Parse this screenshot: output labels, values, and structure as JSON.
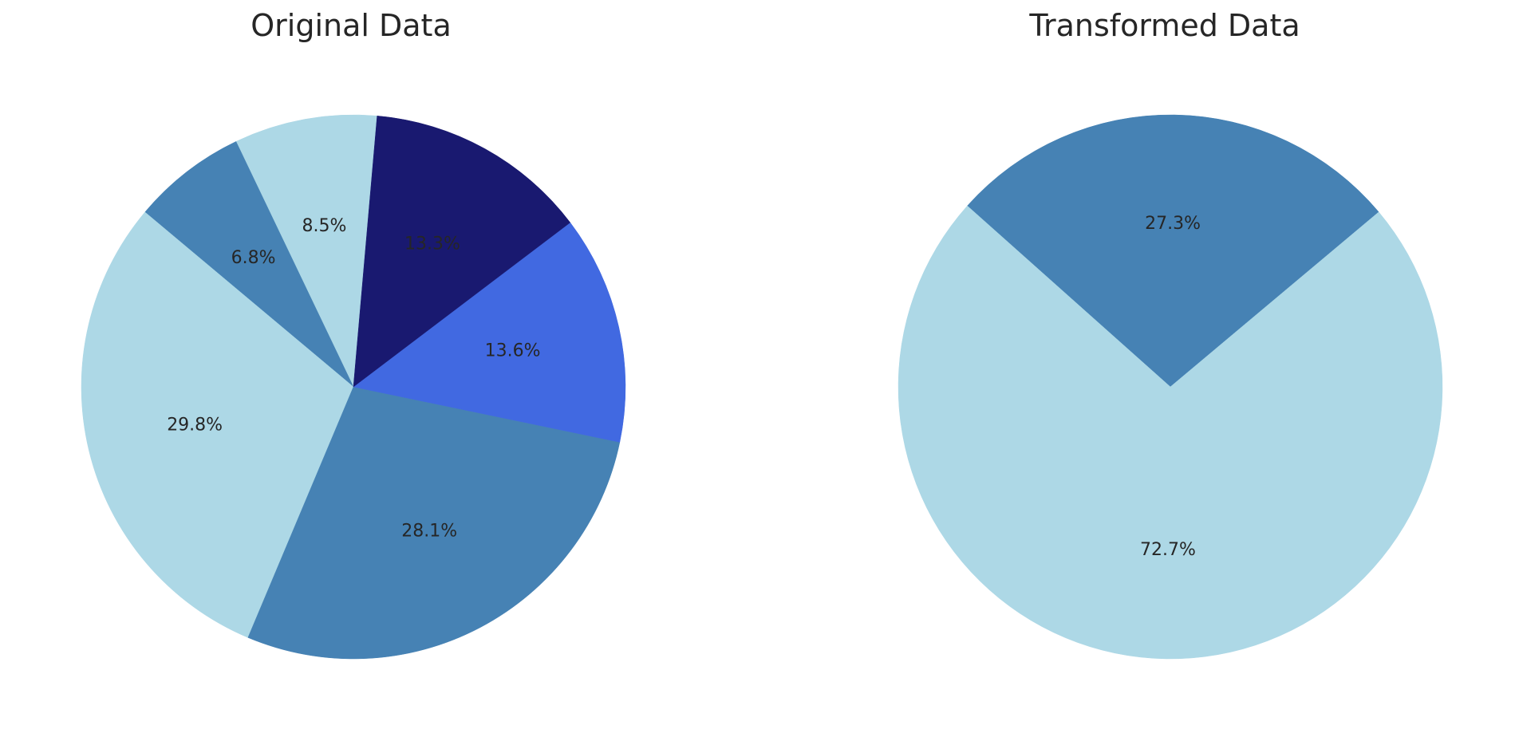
{
  "chart_data": [
    {
      "type": "pie",
      "title": "Original Data",
      "start_angle_deg": 85,
      "direction": "counterclockwise",
      "slices": [
        {
          "label_text": "8.5%",
          "value": 8.5,
          "color": "#add8e6"
        },
        {
          "label_text": "6.8%",
          "value": 6.8,
          "color": "#4682b4"
        },
        {
          "label_text": "29.8%",
          "value": 29.8,
          "color": "#add8e6"
        },
        {
          "label_text": "28.1%",
          "value": 28.1,
          "color": "#4682b4"
        },
        {
          "label_text": "13.6%",
          "value": 13.6,
          "color": "#4169e1"
        },
        {
          "label_text": "13.3%",
          "value": 13.3,
          "color": "#191970"
        }
      ]
    },
    {
      "type": "pie",
      "title": "Transformed Data",
      "start_angle_deg": 40,
      "direction": "counterclockwise",
      "slices": [
        {
          "label_text": "27.3%",
          "value": 27.3,
          "color": "#4682b4"
        },
        {
          "label_text": "72.7%",
          "value": 72.7,
          "color": "#add8e6"
        }
      ]
    }
  ]
}
